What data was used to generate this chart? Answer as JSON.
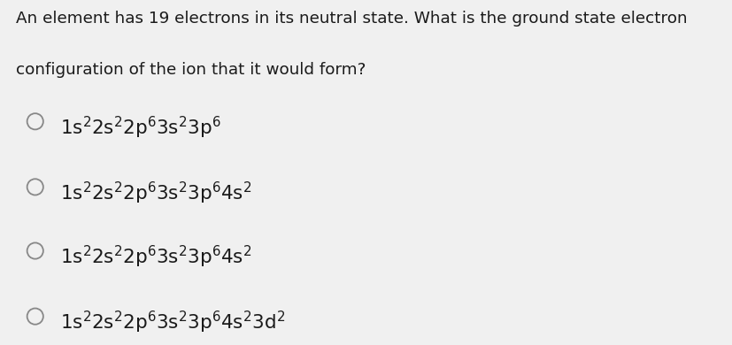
{
  "background_color": "#f0f0f0",
  "question_line1": "An element has 19 electrons in its neutral state. What is the ground state electron",
  "question_line2": "configuration of the ion that it would form?",
  "options_math": [
    "$\\mathregular{1s^22s^22p^63s^23p^6}$",
    "$\\mathregular{1s^22s^22p^63s^23p^64s^2}$",
    "$\\mathregular{1s^22s^22p^63s^23p^64s^2}$",
    "$\\mathregular{1s^22s^22p^63s^23p^64s^23d^2}$"
  ],
  "text_color": "#1a1a1a",
  "question_fontsize": 13.2,
  "option_fontsize": 15.5,
  "fig_width": 8.28,
  "fig_height": 3.9,
  "dpi": 100
}
